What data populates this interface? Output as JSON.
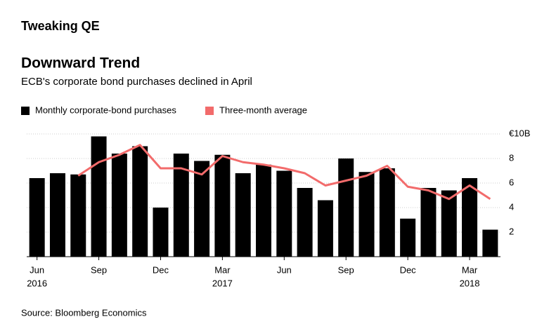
{
  "header": "Tweaking QE",
  "chart_data": {
    "type": "bar_line",
    "title": "Downward Trend",
    "subtitle": "ECB's corporate bond purchases declined in April",
    "source": "Source: Bloomberg Economics",
    "categories": [
      "Jun",
      null,
      null,
      "Sep",
      null,
      null,
      "Dec",
      null,
      null,
      "Mar",
      null,
      null,
      "Jun",
      null,
      null,
      "Sep",
      null,
      null,
      "Dec",
      null,
      null,
      "Mar",
      null
    ],
    "category_years": [
      "2016",
      null,
      null,
      null,
      null,
      null,
      null,
      null,
      null,
      "2017",
      null,
      null,
      null,
      null,
      null,
      null,
      null,
      null,
      null,
      null,
      null,
      "2018",
      null
    ],
    "series": [
      {
        "name": "Monthly corporate-bond purchases",
        "color": "#000000",
        "kind": "bar",
        "values": [
          6.4,
          6.8,
          6.7,
          9.8,
          8.4,
          9.0,
          4.0,
          8.4,
          7.8,
          8.3,
          6.8,
          7.5,
          7.0,
          5.6,
          4.6,
          8.0,
          6.9,
          7.2,
          3.1,
          5.6,
          5.4,
          6.4,
          2.2
        ]
      },
      {
        "name": "Three-month average",
        "color": "#f26b6b",
        "kind": "line",
        "values": [
          null,
          null,
          6.6,
          7.7,
          8.3,
          9.1,
          7.2,
          7.2,
          6.7,
          8.2,
          7.7,
          7.5,
          7.2,
          6.8,
          5.8,
          6.2,
          6.6,
          7.4,
          5.7,
          5.4,
          4.7,
          5.8,
          4.7
        ]
      }
    ],
    "ylim": [
      0,
      10.6
    ],
    "yticks": [
      2,
      4,
      6,
      8,
      {
        "value": 10,
        "label": "€10B"
      }
    ],
    "grid": true
  }
}
